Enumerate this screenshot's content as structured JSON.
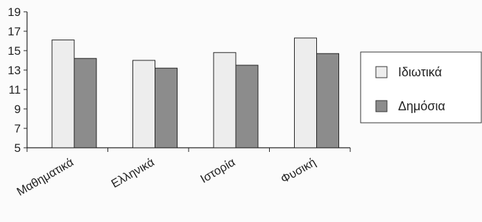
{
  "chart_data": {
    "type": "bar",
    "categories": [
      "Μαθηματικά",
      "Ελληνικά",
      "Ιστορία",
      "Φυσική"
    ],
    "series": [
      {
        "name": "Ιδιωτικά",
        "values": [
          16.1,
          14.0,
          14.8,
          16.3
        ],
        "color": "#ededed"
      },
      {
        "name": "Δημόσια",
        "values": [
          14.2,
          13.2,
          13.5,
          14.7
        ],
        "color": "#8c8c8c"
      }
    ],
    "ylim": [
      5,
      19
    ],
    "yticks": [
      5,
      7,
      9,
      11,
      13,
      15,
      17,
      19
    ],
    "grid": false,
    "legend_position": "right"
  }
}
